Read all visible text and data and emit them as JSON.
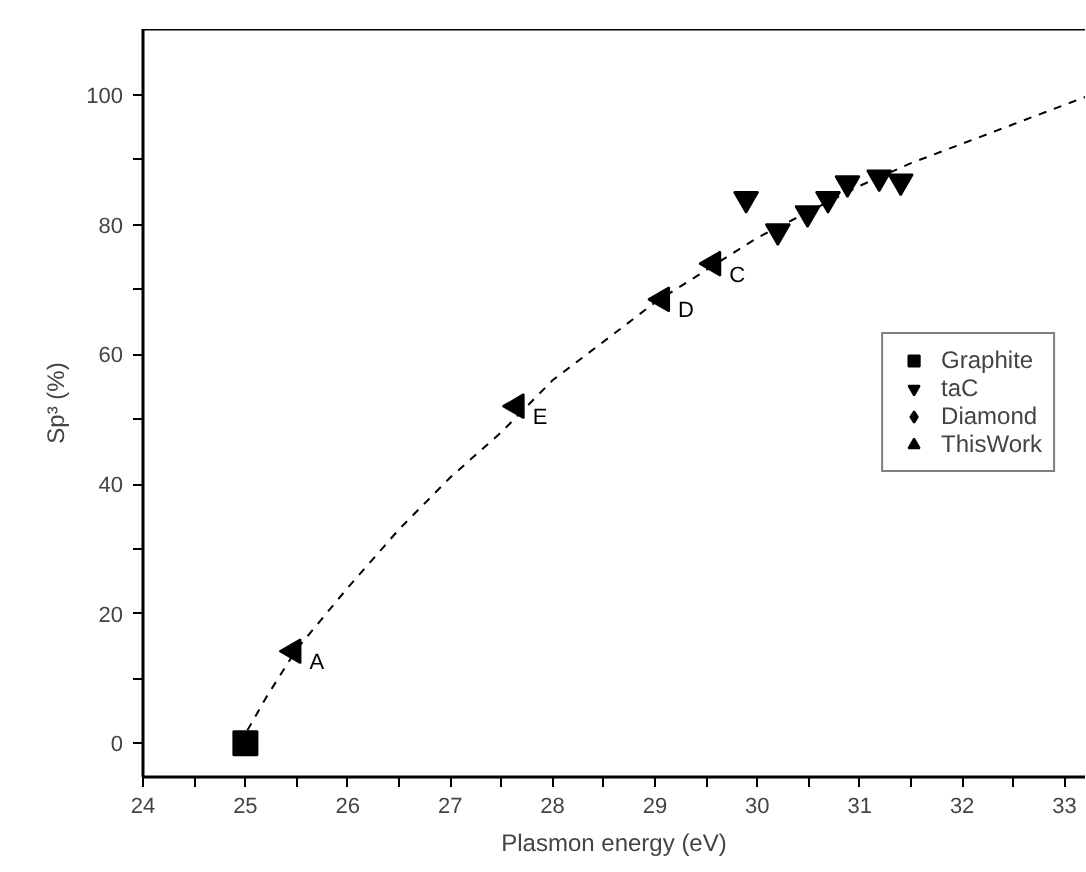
{
  "chart_data": {
    "type": "scatter",
    "xlabel": "Plasmon energy (eV)",
    "ylabel": "Sp³ (%)",
    "xlim": [
      24,
      33.2
    ],
    "ylim": [
      -5.2,
      110.2
    ],
    "xticks": [
      24,
      {
        "value": 24.5,
        "label": null
      },
      25,
      {
        "value": 25.5,
        "label": null
      },
      26,
      {
        "value": 26.5,
        "label": null
      },
      27,
      {
        "value": 27.5,
        "label": null
      },
      28,
      {
        "value": 28.5,
        "label": null
      },
      29,
      {
        "value": 29.5,
        "label": null
      },
      30,
      {
        "value": 30.5,
        "label": null
      },
      31,
      {
        "value": 31.5,
        "label": null
      },
      32,
      {
        "value": 32.5,
        "label": null
      },
      33
    ],
    "yticks": [
      0,
      {
        "value": 10,
        "label": null
      },
      20,
      {
        "value": 30,
        "label": null
      },
      40,
      {
        "value": 50,
        "label": null
      },
      60,
      {
        "value": 70,
        "label": null
      },
      80,
      {
        "value": 90,
        "label": null
      },
      100
    ],
    "grid": false,
    "legend": "right",
    "series": [
      {
        "name": "Graphite",
        "marker": "square",
        "color": "#000000",
        "x": [
          25.0
        ],
        "values": [
          0
        ]
      },
      {
        "name": "taC",
        "marker": "triangle_down",
        "color": "#000000",
        "x": [
          29.89,
          30.2,
          30.49,
          30.69,
          30.88,
          31.19,
          31.4
        ],
        "values": [
          84,
          79,
          81.8,
          84,
          86.4,
          87.3,
          86.7
        ]
      },
      {
        "name": "Diamond",
        "marker": "diamond",
        "color": "#000000"
      },
      {
        "name": "ThisWork",
        "marker": "triangle_left",
        "color": "#000000",
        "x": [
          25.47,
          27.65,
          29.07,
          29.57
        ],
        "values": [
          14.2,
          52,
          68.5,
          74
        ]
      },
      {
        "type": "line",
        "line_style": "dashed",
        "color": "#000000",
        "x": [
          25.02,
          25.2,
          25.5,
          26,
          26.5,
          27,
          27.5,
          28,
          28.5,
          29,
          29.5,
          30,
          30.5,
          31,
          31.5,
          32,
          32.5,
          33.2
        ],
        "values": [
          2,
          7,
          14.5,
          24,
          33,
          41,
          48,
          56,
          62,
          68,
          73,
          78,
          82,
          86,
          89.5,
          92.5,
          95.5,
          99.7
        ]
      }
    ],
    "annotations": [
      {
        "text": "A",
        "x": 25.47,
        "y": 14.2
      },
      {
        "text": "E",
        "x": 27.65,
        "y": 52
      },
      {
        "text": "D",
        "x": 29.07,
        "y": 68.5
      },
      {
        "text": "C",
        "x": 29.57,
        "y": 74
      }
    ]
  }
}
